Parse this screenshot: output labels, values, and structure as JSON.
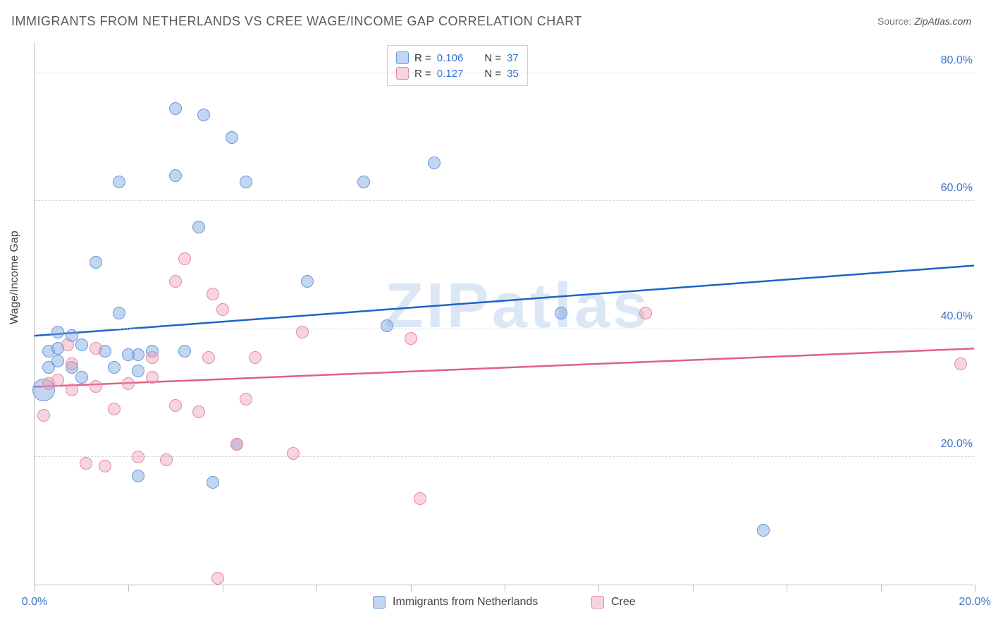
{
  "title": "IMMIGRANTS FROM NETHERLANDS VS CREE WAGE/INCOME GAP CORRELATION CHART",
  "source_label": "Source:",
  "source_value": "ZipAtlas.com",
  "ylabel": "Wage/Income Gap",
  "watermark": "ZIPatlas",
  "chart": {
    "type": "scatter",
    "xlim": [
      0,
      20
    ],
    "ylim": [
      0,
      85
    ],
    "x_ticks": [
      0,
      2,
      4,
      6,
      8,
      10,
      12,
      14,
      16,
      18,
      20
    ],
    "x_tick_labels": {
      "0": "0.0%",
      "20": "20.0%"
    },
    "y_gridlines": [
      20,
      40,
      60,
      80
    ],
    "y_tick_labels": {
      "20": "20.0%",
      "40": "40.0%",
      "60": "60.0%",
      "80": "80.0%"
    },
    "background_color": "#ffffff",
    "grid_color": "#d8d8d8",
    "axis_color": "#bdbdbd",
    "tick_label_color": "#3b74c6",
    "marker_base_radius": 9,
    "series": [
      {
        "name": "Immigrants from Netherlands",
        "fill": "rgba(120,165,225,0.45)",
        "stroke": "#6a98d8",
        "trend_color": "#1f63c9",
        "trend": {
          "y_at_x0": 39.0,
          "y_at_xmax": 50.0
        },
        "R": "0.106",
        "N": "37",
        "points": [
          {
            "x": 0.2,
            "y": 30.5,
            "r": 16
          },
          {
            "x": 0.3,
            "y": 34.0
          },
          {
            "x": 0.3,
            "y": 36.5
          },
          {
            "x": 0.5,
            "y": 35.0
          },
          {
            "x": 0.5,
            "y": 39.5
          },
          {
            "x": 0.5,
            "y": 37.0
          },
          {
            "x": 0.8,
            "y": 34.0
          },
          {
            "x": 0.8,
            "y": 39.0
          },
          {
            "x": 1.0,
            "y": 32.5
          },
          {
            "x": 1.0,
            "y": 37.5
          },
          {
            "x": 1.3,
            "y": 50.5
          },
          {
            "x": 1.5,
            "y": 36.5
          },
          {
            "x": 1.7,
            "y": 34.0
          },
          {
            "x": 1.8,
            "y": 42.5
          },
          {
            "x": 1.8,
            "y": 63.0
          },
          {
            "x": 2.0,
            "y": 36.0
          },
          {
            "x": 2.2,
            "y": 33.5
          },
          {
            "x": 2.2,
            "y": 36.0
          },
          {
            "x": 2.2,
            "y": 17.0
          },
          {
            "x": 2.5,
            "y": 36.5
          },
          {
            "x": 3.0,
            "y": 64.0
          },
          {
            "x": 3.0,
            "y": 74.5
          },
          {
            "x": 3.2,
            "y": 36.5
          },
          {
            "x": 3.5,
            "y": 56.0
          },
          {
            "x": 3.6,
            "y": 73.5
          },
          {
            "x": 3.8,
            "y": 16.0
          },
          {
            "x": 4.2,
            "y": 70.0
          },
          {
            "x": 4.3,
            "y": 22.0
          },
          {
            "x": 4.5,
            "y": 63.0
          },
          {
            "x": 5.8,
            "y": 47.5
          },
          {
            "x": 7.0,
            "y": 63.0
          },
          {
            "x": 7.5,
            "y": 40.5
          },
          {
            "x": 8.5,
            "y": 66.0
          },
          {
            "x": 11.2,
            "y": 42.5
          },
          {
            "x": 15.5,
            "y": 8.5
          }
        ]
      },
      {
        "name": "Cree",
        "fill": "rgba(235,150,175,0.40)",
        "stroke": "#e48aa6",
        "trend_color": "#e05f88",
        "trend": {
          "y_at_x0": 31.0,
          "y_at_xmax": 37.0
        },
        "R": "0.127",
        "N": "35",
        "points": [
          {
            "x": 0.2,
            "y": 26.5
          },
          {
            "x": 0.3,
            "y": 31.5
          },
          {
            "x": 0.5,
            "y": 32.0
          },
          {
            "x": 0.7,
            "y": 37.5
          },
          {
            "x": 0.8,
            "y": 30.5
          },
          {
            "x": 0.8,
            "y": 34.5
          },
          {
            "x": 1.1,
            "y": 19.0
          },
          {
            "x": 1.3,
            "y": 37.0
          },
          {
            "x": 1.3,
            "y": 31.0
          },
          {
            "x": 1.5,
            "y": 18.5
          },
          {
            "x": 1.7,
            "y": 27.5
          },
          {
            "x": 2.0,
            "y": 31.5
          },
          {
            "x": 2.2,
            "y": 20.0
          },
          {
            "x": 2.5,
            "y": 32.5
          },
          {
            "x": 2.5,
            "y": 35.5
          },
          {
            "x": 2.8,
            "y": 19.5
          },
          {
            "x": 3.0,
            "y": 28.0
          },
          {
            "x": 3.0,
            "y": 47.5
          },
          {
            "x": 3.2,
            "y": 51.0
          },
          {
            "x": 3.5,
            "y": 27.0
          },
          {
            "x": 3.7,
            "y": 35.5
          },
          {
            "x": 3.8,
            "y": 45.5
          },
          {
            "x": 3.9,
            "y": 1.0
          },
          {
            "x": 4.0,
            "y": 43.0
          },
          {
            "x": 4.3,
            "y": 22.0
          },
          {
            "x": 4.5,
            "y": 29.0
          },
          {
            "x": 4.7,
            "y": 35.5
          },
          {
            "x": 5.5,
            "y": 20.5
          },
          {
            "x": 5.7,
            "y": 39.5
          },
          {
            "x": 8.0,
            "y": 38.5
          },
          {
            "x": 8.2,
            "y": 13.5
          },
          {
            "x": 13.0,
            "y": 42.5
          },
          {
            "x": 19.7,
            "y": 34.5
          }
        ]
      }
    ]
  },
  "top_legend": {
    "rows": [
      {
        "swatch_fill": "rgba(120,165,225,0.45)",
        "swatch_stroke": "#6a98d8",
        "R_label": "R =",
        "R": "0.106",
        "N_label": "N =",
        "N": "37"
      },
      {
        "swatch_fill": "rgba(235,150,175,0.40)",
        "swatch_stroke": "#e48aa6",
        "R_label": "R =",
        "R": "0.127",
        "N_label": "N =",
        "N": "35"
      }
    ]
  },
  "bottom_legend": [
    {
      "swatch_fill": "rgba(120,165,225,0.45)",
      "swatch_stroke": "#6a98d8",
      "label": "Immigrants from Netherlands"
    },
    {
      "swatch_fill": "rgba(235,150,175,0.40)",
      "swatch_stroke": "#e48aa6",
      "label": "Cree"
    }
  ]
}
